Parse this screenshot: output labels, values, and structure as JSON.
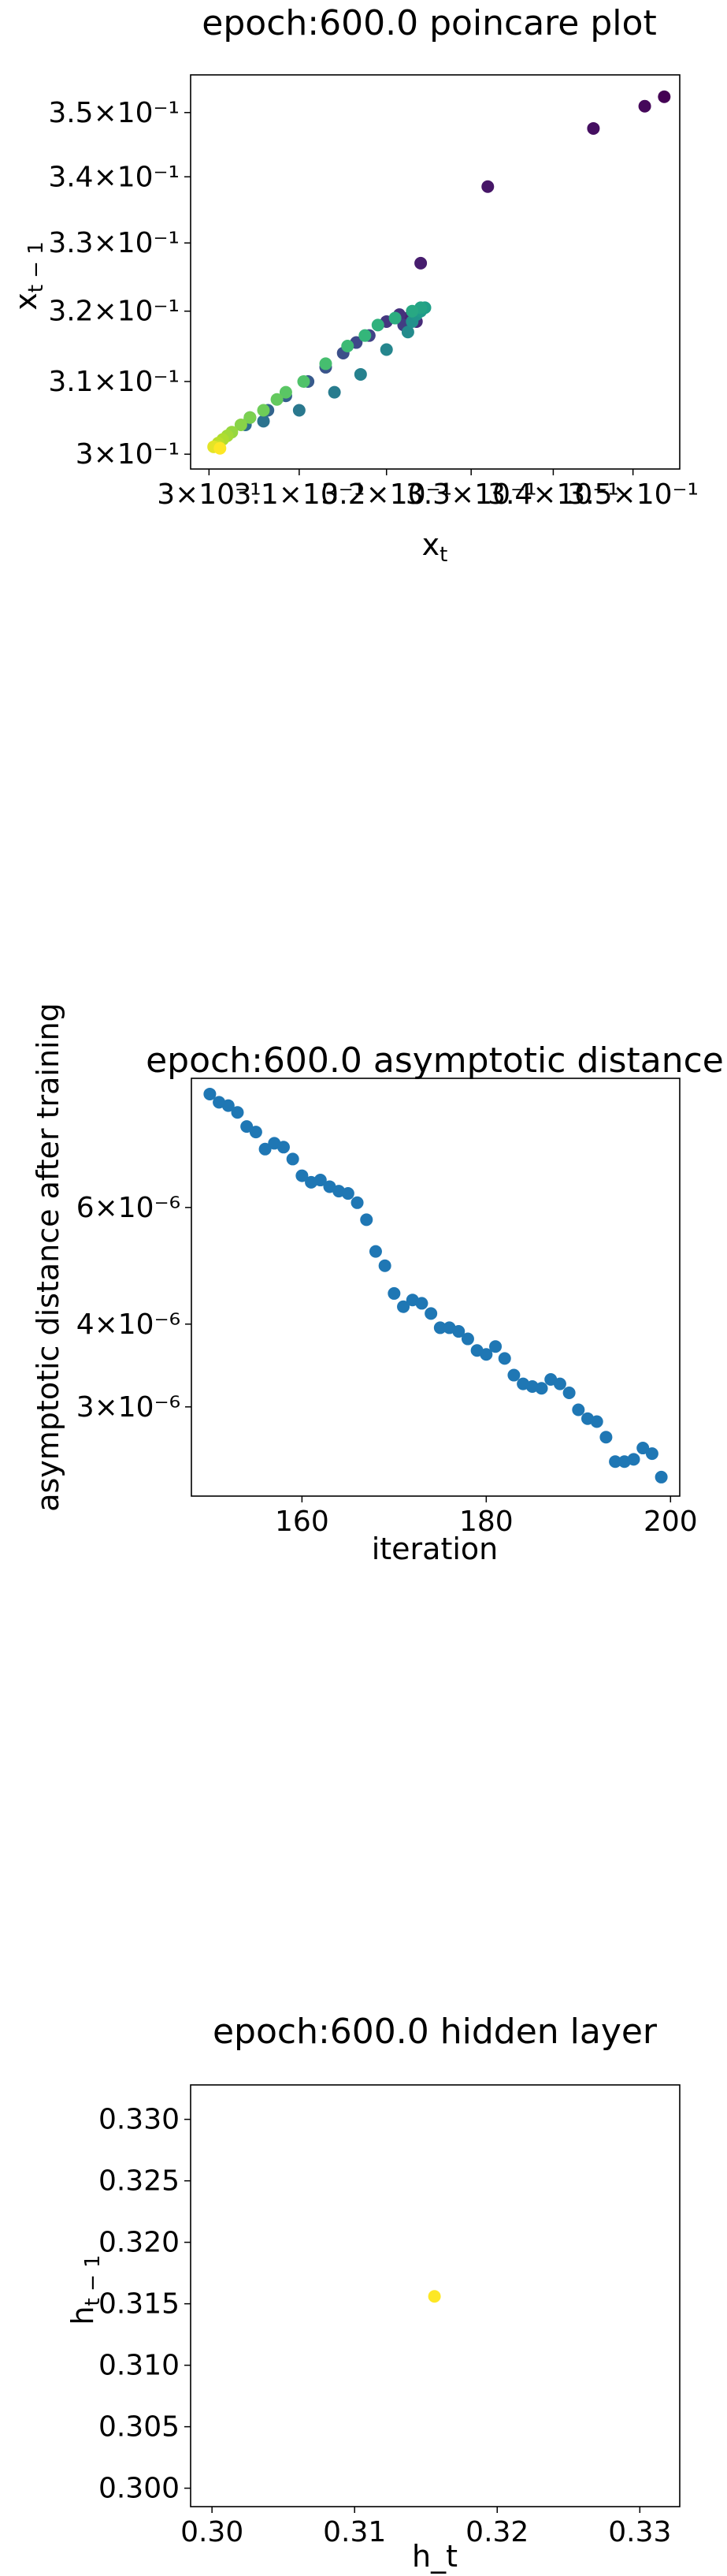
{
  "chart_data": [
    {
      "type": "scatter",
      "title": "epoch:600.0 poincare plot",
      "xlabel": "x_t",
      "ylabel": "x_{t-1}",
      "x_scale": "log",
      "y_scale": "log",
      "xlim": [
        0.298,
        0.356
      ],
      "ylim": [
        0.298,
        0.356
      ],
      "xticks": [
        0.3,
        0.31,
        0.32,
        0.33,
        0.34,
        0.35
      ],
      "xtick_labels": [
        "3×10⁻¹",
        "3.1×10⁻¹",
        "3.2×10⁻¹",
        "3.3×10⁻¹",
        "3.4×10⁻¹",
        "3.5×10⁻¹"
      ],
      "yticks": [
        0.3,
        0.31,
        0.32,
        0.33,
        0.34,
        0.35
      ],
      "ytick_labels": [
        "3×10⁻¹",
        "3.1×10⁻¹",
        "3.2×10⁻¹",
        "3.3×10⁻¹",
        "3.4×10⁻¹",
        "3.5×10⁻¹"
      ],
      "colormap": "viridis",
      "points": [
        {
          "x": 0.354,
          "y": 0.3525,
          "c": 0.0
        },
        {
          "x": 0.3515,
          "y": 0.351,
          "c": 0.02
        },
        {
          "x": 0.345,
          "y": 0.3475,
          "c": 0.04
        },
        {
          "x": 0.332,
          "y": 0.3385,
          "c": 0.06
        },
        {
          "x": 0.324,
          "y": 0.327,
          "c": 0.08
        },
        {
          "x": 0.3225,
          "y": 0.319,
          "c": 0.1
        },
        {
          "x": 0.3235,
          "y": 0.3185,
          "c": 0.12
        },
        {
          "x": 0.3215,
          "y": 0.3195,
          "c": 0.14
        },
        {
          "x": 0.32,
          "y": 0.3185,
          "c": 0.16
        },
        {
          "x": 0.322,
          "y": 0.318,
          "c": 0.18
        },
        {
          "x": 0.318,
          "y": 0.3165,
          "c": 0.2
        },
        {
          "x": 0.3165,
          "y": 0.3155,
          "c": 0.22
        },
        {
          "x": 0.315,
          "y": 0.314,
          "c": 0.24
        },
        {
          "x": 0.313,
          "y": 0.312,
          "c": 0.26
        },
        {
          "x": 0.311,
          "y": 0.31,
          "c": 0.28
        },
        {
          "x": 0.3085,
          "y": 0.308,
          "c": 0.3
        },
        {
          "x": 0.3065,
          "y": 0.306,
          "c": 0.32
        },
        {
          "x": 0.3045,
          "y": 0.305,
          "c": 0.34
        },
        {
          "x": 0.304,
          "y": 0.304,
          "c": 0.36
        },
        {
          "x": 0.306,
          "y": 0.3045,
          "c": 0.38
        },
        {
          "x": 0.31,
          "y": 0.306,
          "c": 0.4
        },
        {
          "x": 0.314,
          "y": 0.3085,
          "c": 0.42
        },
        {
          "x": 0.317,
          "y": 0.311,
          "c": 0.44
        },
        {
          "x": 0.32,
          "y": 0.3145,
          "c": 0.46
        },
        {
          "x": 0.3225,
          "y": 0.317,
          "c": 0.48
        },
        {
          "x": 0.323,
          "y": 0.3185,
          "c": 0.5
        },
        {
          "x": 0.3235,
          "y": 0.3195,
          "c": 0.52
        },
        {
          "x": 0.324,
          "y": 0.32,
          "c": 0.54
        },
        {
          "x": 0.3245,
          "y": 0.3205,
          "c": 0.56
        },
        {
          "x": 0.324,
          "y": 0.3205,
          "c": 0.58
        },
        {
          "x": 0.323,
          "y": 0.32,
          "c": 0.6
        },
        {
          "x": 0.321,
          "y": 0.319,
          "c": 0.62
        },
        {
          "x": 0.319,
          "y": 0.318,
          "c": 0.64
        },
        {
          "x": 0.3175,
          "y": 0.3165,
          "c": 0.66
        },
        {
          "x": 0.3155,
          "y": 0.315,
          "c": 0.68
        },
        {
          "x": 0.313,
          "y": 0.3125,
          "c": 0.7
        },
        {
          "x": 0.3105,
          "y": 0.31,
          "c": 0.72
        },
        {
          "x": 0.3085,
          "y": 0.3085,
          "c": 0.74
        },
        {
          "x": 0.3075,
          "y": 0.3075,
          "c": 0.76
        },
        {
          "x": 0.306,
          "y": 0.306,
          "c": 0.78
        },
        {
          "x": 0.3045,
          "y": 0.305,
          "c": 0.8
        },
        {
          "x": 0.3035,
          "y": 0.304,
          "c": 0.82
        },
        {
          "x": 0.3025,
          "y": 0.303,
          "c": 0.84
        },
        {
          "x": 0.302,
          "y": 0.3025,
          "c": 0.86
        },
        {
          "x": 0.3015,
          "y": 0.302,
          "c": 0.88
        },
        {
          "x": 0.301,
          "y": 0.3015,
          "c": 0.9
        },
        {
          "x": 0.301,
          "y": 0.301,
          "c": 0.93
        },
        {
          "x": 0.3005,
          "y": 0.301,
          "c": 0.96
        },
        {
          "x": 0.3012,
          "y": 0.3008,
          "c": 1.0
        }
      ]
    },
    {
      "type": "scatter",
      "title": "epoch:600.0 asymptotic distance",
      "xlabel": "iteration",
      "ylabel": "asymptotic distance after training",
      "y_scale": "log",
      "xlim": [
        148,
        201
      ],
      "ylim": [
        2.2e-06,
        9.4e-06
      ],
      "xticks": [
        160,
        180,
        200
      ],
      "xtick_labels": [
        "160",
        "180",
        "200"
      ],
      "yticks": [
        3e-06,
        4e-06,
        6e-06
      ],
      "ytick_labels": [
        "3×10⁻⁶",
        "4×10⁻⁶",
        "6×10⁻⁶"
      ],
      "color": "#1f77b4",
      "x": [
        150,
        151,
        152,
        153,
        154,
        155,
        156,
        157,
        158,
        159,
        160,
        161,
        162,
        163,
        164,
        165,
        166,
        167,
        168,
        169,
        170,
        171,
        172,
        173,
        174,
        175,
        176,
        177,
        178,
        179,
        180,
        181,
        182,
        183,
        184,
        185,
        186,
        187,
        188,
        189,
        190,
        191,
        192,
        193,
        194,
        195,
        196,
        197,
        198,
        199
      ],
      "y": [
        8.9e-06,
        8.65e-06,
        8.55e-06,
        8.35e-06,
        7.95e-06,
        7.8e-06,
        7.35e-06,
        7.5e-06,
        7.4e-06,
        7.1e-06,
        6.7e-06,
        6.55e-06,
        6.6e-06,
        6.45e-06,
        6.35e-06,
        6.3e-06,
        6.1e-06,
        5.75e-06,
        5.15e-06,
        4.9e-06,
        4.45e-06,
        4.25e-06,
        4.35e-06,
        4.3e-06,
        4.15e-06,
        3.95e-06,
        3.95e-06,
        3.9e-06,
        3.8e-06,
        3.65e-06,
        3.6e-06,
        3.7e-06,
        3.55e-06,
        3.35e-06,
        3.25e-06,
        3.22e-06,
        3.2e-06,
        3.3e-06,
        3.25e-06,
        3.15e-06,
        2.97e-06,
        2.88e-06,
        2.85e-06,
        2.7e-06,
        2.48e-06,
        2.48e-06,
        2.5e-06,
        2.6e-06,
        2.55e-06,
        2.35e-06
      ]
    },
    {
      "type": "scatter",
      "title": "epoch:600.0 hidden layer",
      "xlabel": "h_t",
      "ylabel": "h_{t-1}",
      "xlim": [
        0.2985,
        0.3328
      ],
      "ylim": [
        0.2985,
        0.3328
      ],
      "xticks": [
        0.3,
        0.31,
        0.32,
        0.33
      ],
      "xtick_labels": [
        "0.30",
        "0.31",
        "0.32",
        "0.33"
      ],
      "yticks": [
        0.3,
        0.305,
        0.31,
        0.315,
        0.32,
        0.325,
        0.33
      ],
      "ytick_labels": [
        "0.300",
        "0.305",
        "0.310",
        "0.315",
        "0.320",
        "0.325",
        "0.330"
      ],
      "color": "#fde725",
      "points": [
        {
          "x": 0.3156,
          "y": 0.3156
        }
      ]
    }
  ]
}
